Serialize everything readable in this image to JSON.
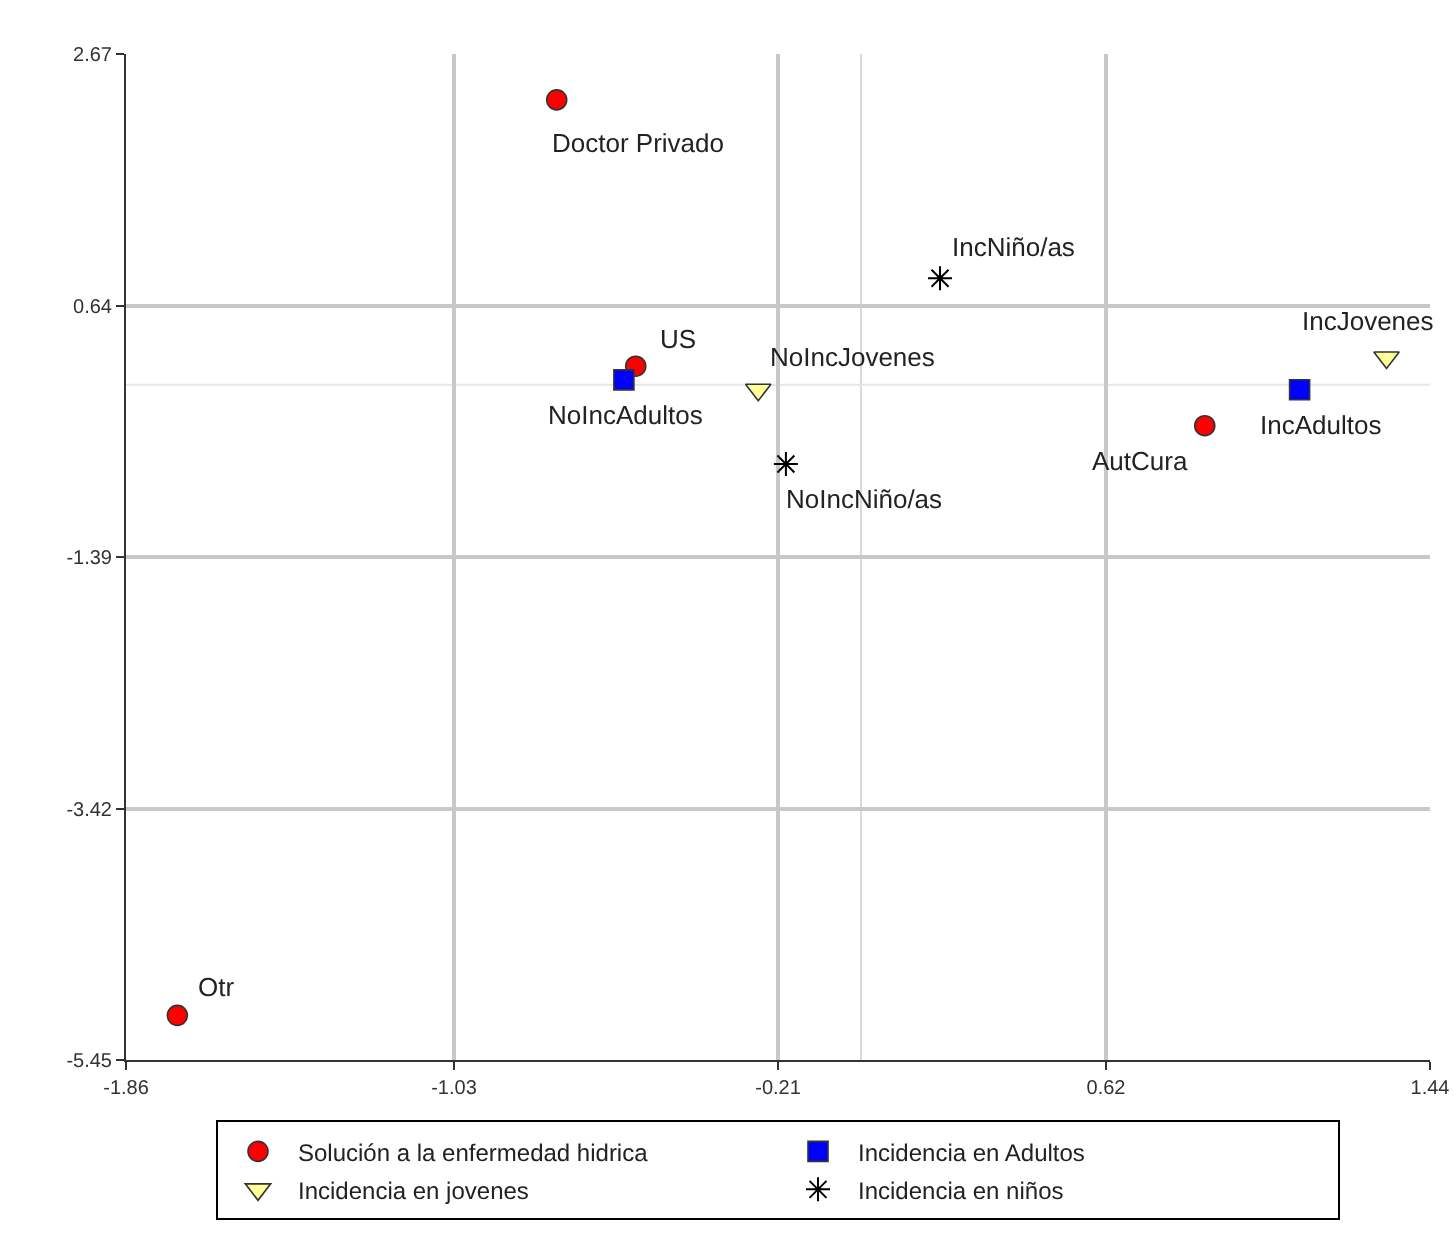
{
  "chart_data": {
    "type": "scatter",
    "xlim": [
      -1.86,
      1.44
    ],
    "xticks": [
      -1.86,
      -1.03,
      -0.21,
      0.62,
      1.44
    ],
    "ylim": [
      -5.45,
      2.67
    ],
    "yticks": [
      -5.45,
      -3.42,
      -1.39,
      0.64,
      2.67
    ],
    "grid": true,
    "legend": "bottom",
    "ref_lines": [
      {
        "axis": "x",
        "value": 0,
        "color": "#dadada"
      },
      {
        "axis": "y",
        "value": 0,
        "color": "#e6e6e6"
      }
    ],
    "series": [
      {
        "name": "Solución a la enfermedad hidrica",
        "color": "#ff0000",
        "marker": "circle",
        "x": [
          -0.77,
          -0.57,
          0.87,
          -1.73
        ],
        "values": [
          2.3,
          0.15,
          -0.33,
          -5.09
        ]
      },
      {
        "name": "Incidencia en Adultos",
        "color": "#0000ff",
        "marker": "square",
        "x": [
          -0.6,
          1.11
        ],
        "values": [
          0.04,
          -0.04
        ]
      },
      {
        "name": "Incidencia en jovenes",
        "color": "#ffff99",
        "marker": "triangle",
        "x": [
          -0.26,
          1.33
        ],
        "values": [
          -0.04,
          0.22
        ]
      },
      {
        "name": "Incidencia en niños",
        "color": "#000000",
        "marker": "cross",
        "x": [
          -0.19,
          0.2
        ],
        "values": [
          -0.64,
          0.86
        ]
      }
    ],
    "annotations": [
      {
        "text": "Doctor Privado",
        "x": -0.77,
        "y": 2.3
      },
      {
        "text": "US",
        "x": -0.57,
        "y": 0.15
      },
      {
        "text": "AutCura",
        "x": 0.87,
        "y": -0.33
      },
      {
        "text": "Otr",
        "x": -1.73,
        "y": -5.09
      },
      {
        "text": "NoIncAdultos",
        "x": -0.6,
        "y": 0.04
      },
      {
        "text": "IncAdultos",
        "x": 1.11,
        "y": -0.04
      },
      {
        "text": "NoIncJovenes",
        "x": -0.26,
        "y": -0.04
      },
      {
        "text": "IncJovenes",
        "x": 1.33,
        "y": 0.22
      },
      {
        "text": "NoIncNiño/as",
        "x": -0.19,
        "y": -0.64
      },
      {
        "text": "IncNiño/as",
        "x": 0.2,
        "y": 0.86
      }
    ]
  }
}
